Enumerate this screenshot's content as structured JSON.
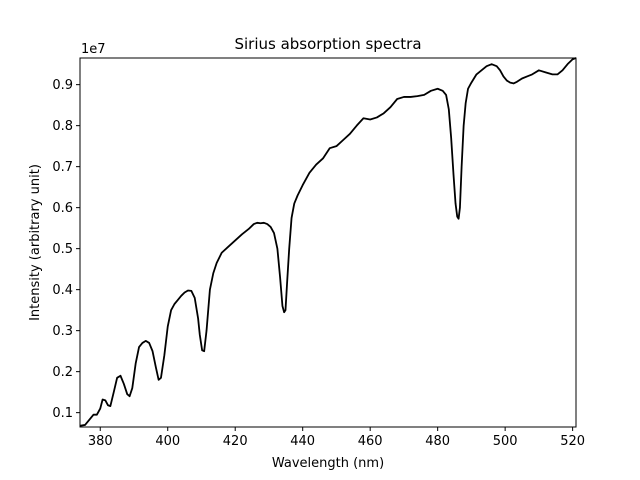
{
  "chart_data": {
    "type": "line",
    "title": "Sirius absorption spectra",
    "xlabel": "Wavelength (nm)",
    "ylabel": "Intensity (arbitrary unit)",
    "y_offset_label": "1e7",
    "xlim": [
      374,
      521
    ],
    "ylim": [
      0.065,
      0.965
    ],
    "x_ticks": [
      380,
      400,
      420,
      440,
      460,
      480,
      500,
      520
    ],
    "x_tick_labels": [
      "380",
      "400",
      "420",
      "440",
      "460",
      "480",
      "500",
      "520"
    ],
    "y_ticks": [
      0.1,
      0.2,
      0.3,
      0.4,
      0.5,
      0.6,
      0.7,
      0.8,
      0.9
    ],
    "y_tick_labels": [
      "0.1",
      "0.2",
      "0.3",
      "0.4",
      "0.5",
      "0.6",
      "0.7",
      "0.8",
      "0.9"
    ],
    "grid": false,
    "color": "#000000",
    "series": [
      {
        "x": [
          374,
          375.5,
          377,
          378,
          379,
          380,
          380.7,
          381.5,
          382.3,
          383,
          384,
          385,
          386,
          387,
          388,
          388.7,
          389.5,
          390.5,
          391.5,
          392.5,
          393.5,
          394.5,
          395.5,
          396.5,
          397.3,
          398,
          399,
          400,
          401,
          402,
          403,
          404,
          405,
          406,
          407,
          408,
          409,
          409.5,
          410.2,
          410.8,
          411.5,
          412.5,
          413.5,
          414.5,
          416,
          418,
          420,
          422,
          424,
          425.5,
          426.5,
          427.5,
          428.5,
          429.5,
          430.5,
          431.5,
          432.5,
          433.3,
          434,
          434.5,
          434.9,
          435.4,
          436,
          436.7,
          437.5,
          438.5,
          440,
          442,
          444,
          446,
          448,
          450,
          452,
          454,
          456,
          458,
          460,
          462,
          464,
          466,
          468,
          470,
          472,
          474,
          476,
          478,
          480,
          481.5,
          482.5,
          483.3,
          484,
          484.7,
          485.3,
          485.8,
          486.2,
          486.6,
          487.1,
          487.7,
          488.3,
          489,
          490,
          491.5,
          493,
          494.5,
          496,
          497.5,
          498.5,
          499.5,
          500.5,
          501.5,
          502.5,
          503.5,
          505,
          506.5,
          508,
          510,
          512,
          514,
          515.5,
          517,
          518.5,
          520,
          521
        ],
        "y": [
          0.068,
          0.07,
          0.085,
          0.095,
          0.095,
          0.11,
          0.132,
          0.13,
          0.118,
          0.116,
          0.15,
          0.185,
          0.19,
          0.17,
          0.145,
          0.14,
          0.16,
          0.22,
          0.26,
          0.27,
          0.275,
          0.27,
          0.25,
          0.21,
          0.18,
          0.185,
          0.24,
          0.31,
          0.35,
          0.365,
          0.375,
          0.385,
          0.393,
          0.398,
          0.397,
          0.38,
          0.33,
          0.29,
          0.252,
          0.25,
          0.3,
          0.4,
          0.44,
          0.465,
          0.49,
          0.505,
          0.52,
          0.535,
          0.548,
          0.56,
          0.563,
          0.562,
          0.563,
          0.56,
          0.553,
          0.538,
          0.5,
          0.43,
          0.36,
          0.345,
          0.35,
          0.42,
          0.5,
          0.575,
          0.61,
          0.63,
          0.655,
          0.685,
          0.705,
          0.72,
          0.745,
          0.75,
          0.765,
          0.78,
          0.8,
          0.818,
          0.815,
          0.82,
          0.83,
          0.845,
          0.865,
          0.87,
          0.87,
          0.872,
          0.875,
          0.885,
          0.89,
          0.885,
          0.875,
          0.84,
          0.77,
          0.68,
          0.61,
          0.578,
          0.573,
          0.6,
          0.7,
          0.8,
          0.855,
          0.89,
          0.905,
          0.925,
          0.935,
          0.945,
          0.95,
          0.945,
          0.935,
          0.92,
          0.91,
          0.905,
          0.903,
          0.907,
          0.915,
          0.92,
          0.925,
          0.935,
          0.93,
          0.925,
          0.925,
          0.935,
          0.95,
          0.962,
          0.965
        ]
      }
    ]
  }
}
